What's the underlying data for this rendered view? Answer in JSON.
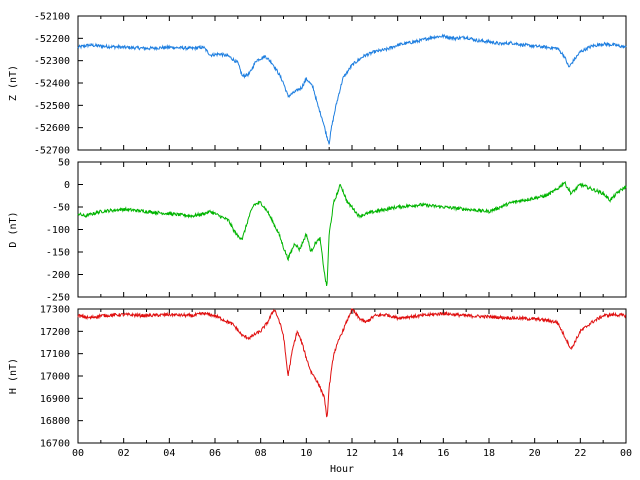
{
  "chart_data": [
    {
      "type": "line",
      "ylabel": "Z (nT)",
      "ylim": [
        -52700,
        -52100
      ],
      "yticks": [
        -52100,
        -52200,
        -52300,
        -52400,
        -52500,
        -52600,
        -52700
      ],
      "xlim": [
        0,
        24
      ],
      "color": "#1f7fe0",
      "series": [
        {
          "x": [
            0,
            0.5,
            1,
            2,
            3,
            4,
            5,
            5.5,
            5.8,
            6.2,
            6.6,
            7.0,
            7.2,
            7.5,
            7.8,
            8.2,
            8.5,
            8.8,
            9.0,
            9.2,
            9.5,
            9.8,
            10.0,
            10.3,
            10.5,
            10.7,
            10.9,
            11.0,
            11.1,
            11.3,
            11.6,
            12.0,
            12.5,
            13.0,
            13.5,
            14.0,
            14.5,
            15.0,
            15.5,
            16.0,
            16.5,
            17.0,
            17.5,
            18.0,
            18.5,
            19.0,
            19.5,
            20.0,
            20.5,
            21.0,
            21.3,
            21.5,
            21.7,
            22.0,
            22.5,
            23.0,
            23.5,
            24.0
          ],
          "y": [
            -52240,
            -52230,
            -52235,
            -52240,
            -52245,
            -52240,
            -52245,
            -52240,
            -52275,
            -52270,
            -52280,
            -52310,
            -52370,
            -52360,
            -52300,
            -52280,
            -52310,
            -52360,
            -52400,
            -52460,
            -52440,
            -52420,
            -52380,
            -52420,
            -52500,
            -52560,
            -52640,
            -52670,
            -52600,
            -52500,
            -52380,
            -52320,
            -52280,
            -52260,
            -52250,
            -52230,
            -52220,
            -52210,
            -52195,
            -52190,
            -52200,
            -52195,
            -52210,
            -52215,
            -52225,
            -52220,
            -52230,
            -52235,
            -52240,
            -52245,
            -52280,
            -52330,
            -52300,
            -52260,
            -52235,
            -52225,
            -52230,
            -52240
          ]
        }
      ]
    },
    {
      "type": "line",
      "ylabel": "D (nT)",
      "ylim": [
        -250,
        50
      ],
      "yticks": [
        50,
        0,
        -50,
        -100,
        -150,
        -200,
        -250
      ],
      "xlim": [
        0,
        24
      ],
      "color": "#00b400",
      "series": [
        {
          "x": [
            0,
            0.3,
            1,
            2,
            3,
            4,
            5,
            5.5,
            5.8,
            6.2,
            6.6,
            6.8,
            7.0,
            7.2,
            7.5,
            7.7,
            8.0,
            8.3,
            8.6,
            8.8,
            9.0,
            9.2,
            9.5,
            9.7,
            10.0,
            10.2,
            10.4,
            10.6,
            10.8,
            10.9,
            11.0,
            11.2,
            11.5,
            11.8,
            12.0,
            12.3,
            13,
            14,
            15,
            16,
            17,
            18,
            18.5,
            19,
            19.5,
            20,
            20.5,
            21,
            21.3,
            21.6,
            22.0,
            22.5,
            23.0,
            23.3,
            23.7,
            24.0
          ],
          "y": [
            -65,
            -70,
            -60,
            -55,
            -60,
            -65,
            -70,
            -65,
            -60,
            -70,
            -80,
            -100,
            -115,
            -120,
            -70,
            -45,
            -40,
            -60,
            -90,
            -110,
            -140,
            -165,
            -130,
            -145,
            -110,
            -150,
            -130,
            -120,
            -200,
            -230,
            -110,
            -40,
            0,
            -40,
            -50,
            -70,
            -60,
            -50,
            -45,
            -50,
            -55,
            -60,
            -50,
            -40,
            -35,
            -30,
            -25,
            -10,
            5,
            -20,
            0,
            -10,
            -20,
            -35,
            -15,
            -5
          ]
        }
      ]
    },
    {
      "type": "line",
      "ylabel": "H (nT)",
      "ylim": [
        16700,
        17300
      ],
      "yticks": [
        17300,
        17200,
        17100,
        17000,
        16900,
        16800,
        16700
      ],
      "xlim": [
        0,
        24
      ],
      "xticks": [
        "00",
        "02",
        "04",
        "06",
        "08",
        "10",
        "12",
        "14",
        "16",
        "18",
        "20",
        "22",
        "00"
      ],
      "xlabel": "Hour",
      "color": "#e01010",
      "series": [
        {
          "x": [
            0,
            0.5,
            1,
            2,
            3,
            4,
            5,
            5.5,
            6.0,
            6.4,
            6.8,
            7.2,
            7.5,
            7.8,
            8.0,
            8.3,
            8.6,
            8.8,
            9.0,
            9.2,
            9.4,
            9.6,
            9.8,
            10.0,
            10.2,
            10.4,
            10.6,
            10.8,
            10.9,
            11.0,
            11.2,
            11.5,
            11.8,
            12.0,
            12.3,
            12.6,
            13.0,
            13.5,
            14.0,
            15.0,
            16.0,
            17.0,
            18.0,
            19.0,
            20.0,
            20.5,
            21.0,
            21.3,
            21.6,
            21.8,
            22.0,
            22.5,
            23.0,
            23.5,
            24.0
          ],
          "y": [
            17270,
            17260,
            17270,
            17275,
            17270,
            17275,
            17270,
            17280,
            17270,
            17250,
            17230,
            17180,
            17170,
            17190,
            17200,
            17240,
            17300,
            17250,
            17180,
            17000,
            17120,
            17200,
            17150,
            17080,
            17020,
            16990,
            16950,
            16900,
            16800,
            16950,
            17100,
            17180,
            17250,
            17300,
            17260,
            17240,
            17270,
            17275,
            17260,
            17270,
            17280,
            17270,
            17265,
            17260,
            17255,
            17250,
            17240,
            17180,
            17120,
            17160,
            17200,
            17240,
            17270,
            17275,
            17270
          ]
        }
      ]
    }
  ]
}
